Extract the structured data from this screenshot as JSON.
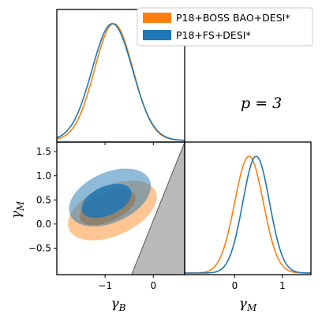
{
  "chart_data": {
    "type": "corner",
    "legend": {
      "placement": "top-right",
      "entries": [
        {
          "label": "P18+BOSS BAO+DESI*",
          "color": "#ff7f0e"
        },
        {
          "label": "P18+FS+DESI*",
          "color": "#1f77b4"
        }
      ]
    },
    "annotation": "p = 3",
    "parameters": [
      {
        "name": "gamma_B",
        "label": "γB",
        "range": [
          -2.0,
          0.65
        ],
        "ticks": [
          -1,
          0
        ],
        "tick_labels": [
          "−1",
          "0"
        ]
      },
      {
        "name": "gamma_M",
        "label": "γM",
        "range": [
          -1.05,
          1.7
        ],
        "ticks": [
          -0.5,
          0.0,
          0.5,
          1.0,
          1.5
        ],
        "tick_labels": [
          "−0.5",
          "0.0",
          "0.5",
          "1.0",
          "1.5"
        ]
      }
    ],
    "panels": [
      {
        "type": "line",
        "position": "top-left",
        "x_param": "gamma_B",
        "series": [
          {
            "name": "P18+BOSS BAO+DESI*",
            "color": "#ff7f0e",
            "mean": -0.82,
            "sigma": 0.4
          },
          {
            "name": "P18+FS+DESI*",
            "color": "#1f77b4",
            "mean": -0.85,
            "sigma": 0.42
          }
        ]
      },
      {
        "type": "line",
        "position": "bottom-right",
        "x_param": "gamma_M",
        "xlim": [
          -1.05,
          1.6
        ],
        "x_ticks": [
          0,
          1
        ],
        "x_tick_labels": [
          "0",
          "1"
        ],
        "series": [
          {
            "name": "P18+BOSS BAO+DESI*",
            "color": "#ff7f0e",
            "mean": 0.3,
            "sigma": 0.3
          },
          {
            "name": "P18+FS+DESI*",
            "color": "#1f77b4",
            "mean": 0.45,
            "sigma": 0.28
          }
        ]
      },
      {
        "type": "contour",
        "position": "bottom-left",
        "x_param": "gamma_B",
        "y_param": "gamma_M",
        "excluded_region": {
          "color": "#b9b9b9",
          "vertices": [
            [
              -0.45,
              -1.05
            ],
            [
              0.65,
              1.7
            ],
            [
              0.65,
              -1.05
            ]
          ]
        },
        "series": [
          {
            "name": "P18+BOSS BAO+DESI*",
            "color": "#ff7f0e",
            "contours": [
              {
                "level": "95%",
                "opacity": 0.45,
                "center": [
                  -0.85,
                  0.28
                ],
                "radii": [
                  0.98,
                  0.52
                ],
                "angle_deg": 24
              },
              {
                "level": "68%",
                "opacity": 0.8,
                "center": [
                  -0.95,
                  0.35
                ],
                "radii": [
                  0.62,
                  0.3
                ],
                "angle_deg": 24
              }
            ]
          },
          {
            "name": "P18+FS+DESI*",
            "color": "#1f77b4",
            "contours": [
              {
                "level": "95%",
                "opacity": 0.5,
                "center": [
                  -0.9,
                  0.55
                ],
                "radii": [
                  0.9,
                  0.52
                ],
                "angle_deg": 24
              },
              {
                "level": "68%",
                "opacity": 0.85,
                "center": [
                  -0.97,
                  0.48
                ],
                "radii": [
                  0.55,
                  0.3
                ],
                "angle_deg": 24
              }
            ]
          }
        ]
      }
    ]
  }
}
